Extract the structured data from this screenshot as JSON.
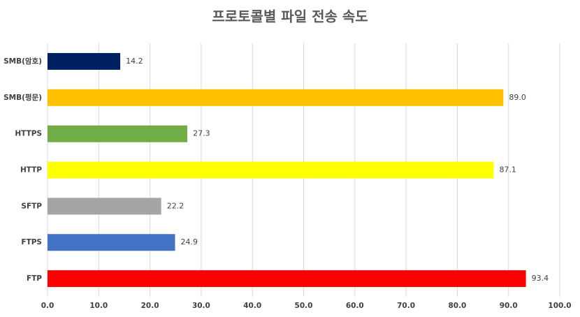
{
  "chart_data": {
    "type": "hbar",
    "title": "프로토콜별 파일 전송 속도",
    "categories": [
      "SMB(암호)",
      "SMB(평문)",
      "HTTPS",
      "HTTP",
      "SFTP",
      "FTPS",
      "FTP"
    ],
    "values": [
      14.2,
      89.0,
      27.3,
      87.1,
      22.2,
      24.9,
      93.4
    ],
    "value_labels": [
      "14.2",
      "89.0",
      "27.3",
      "87.1",
      "22.2",
      "24.9",
      "93.4"
    ],
    "colors": [
      "#002060",
      "#ffc000",
      "#70ad47",
      "#ffff00",
      "#a5a5a5",
      "#4472c4",
      "#ff0000"
    ],
    "xlim": [
      0,
      100
    ],
    "xticks": [
      {
        "value": 0,
        "label": "0.0"
      },
      {
        "value": 10,
        "label": "10.0"
      },
      {
        "value": 20,
        "label": "20.0"
      },
      {
        "value": 30,
        "label": "30.0"
      },
      {
        "value": 40,
        "label": "40.0"
      },
      {
        "value": 50,
        "label": "50.0"
      },
      {
        "value": 60,
        "label": "60.0"
      },
      {
        "value": 70,
        "label": "70.0"
      },
      {
        "value": 80,
        "label": "80.0"
      },
      {
        "value": 90,
        "label": "90.0"
      },
      {
        "value": 100,
        "label": "100.0"
      }
    ],
    "grid": true
  }
}
